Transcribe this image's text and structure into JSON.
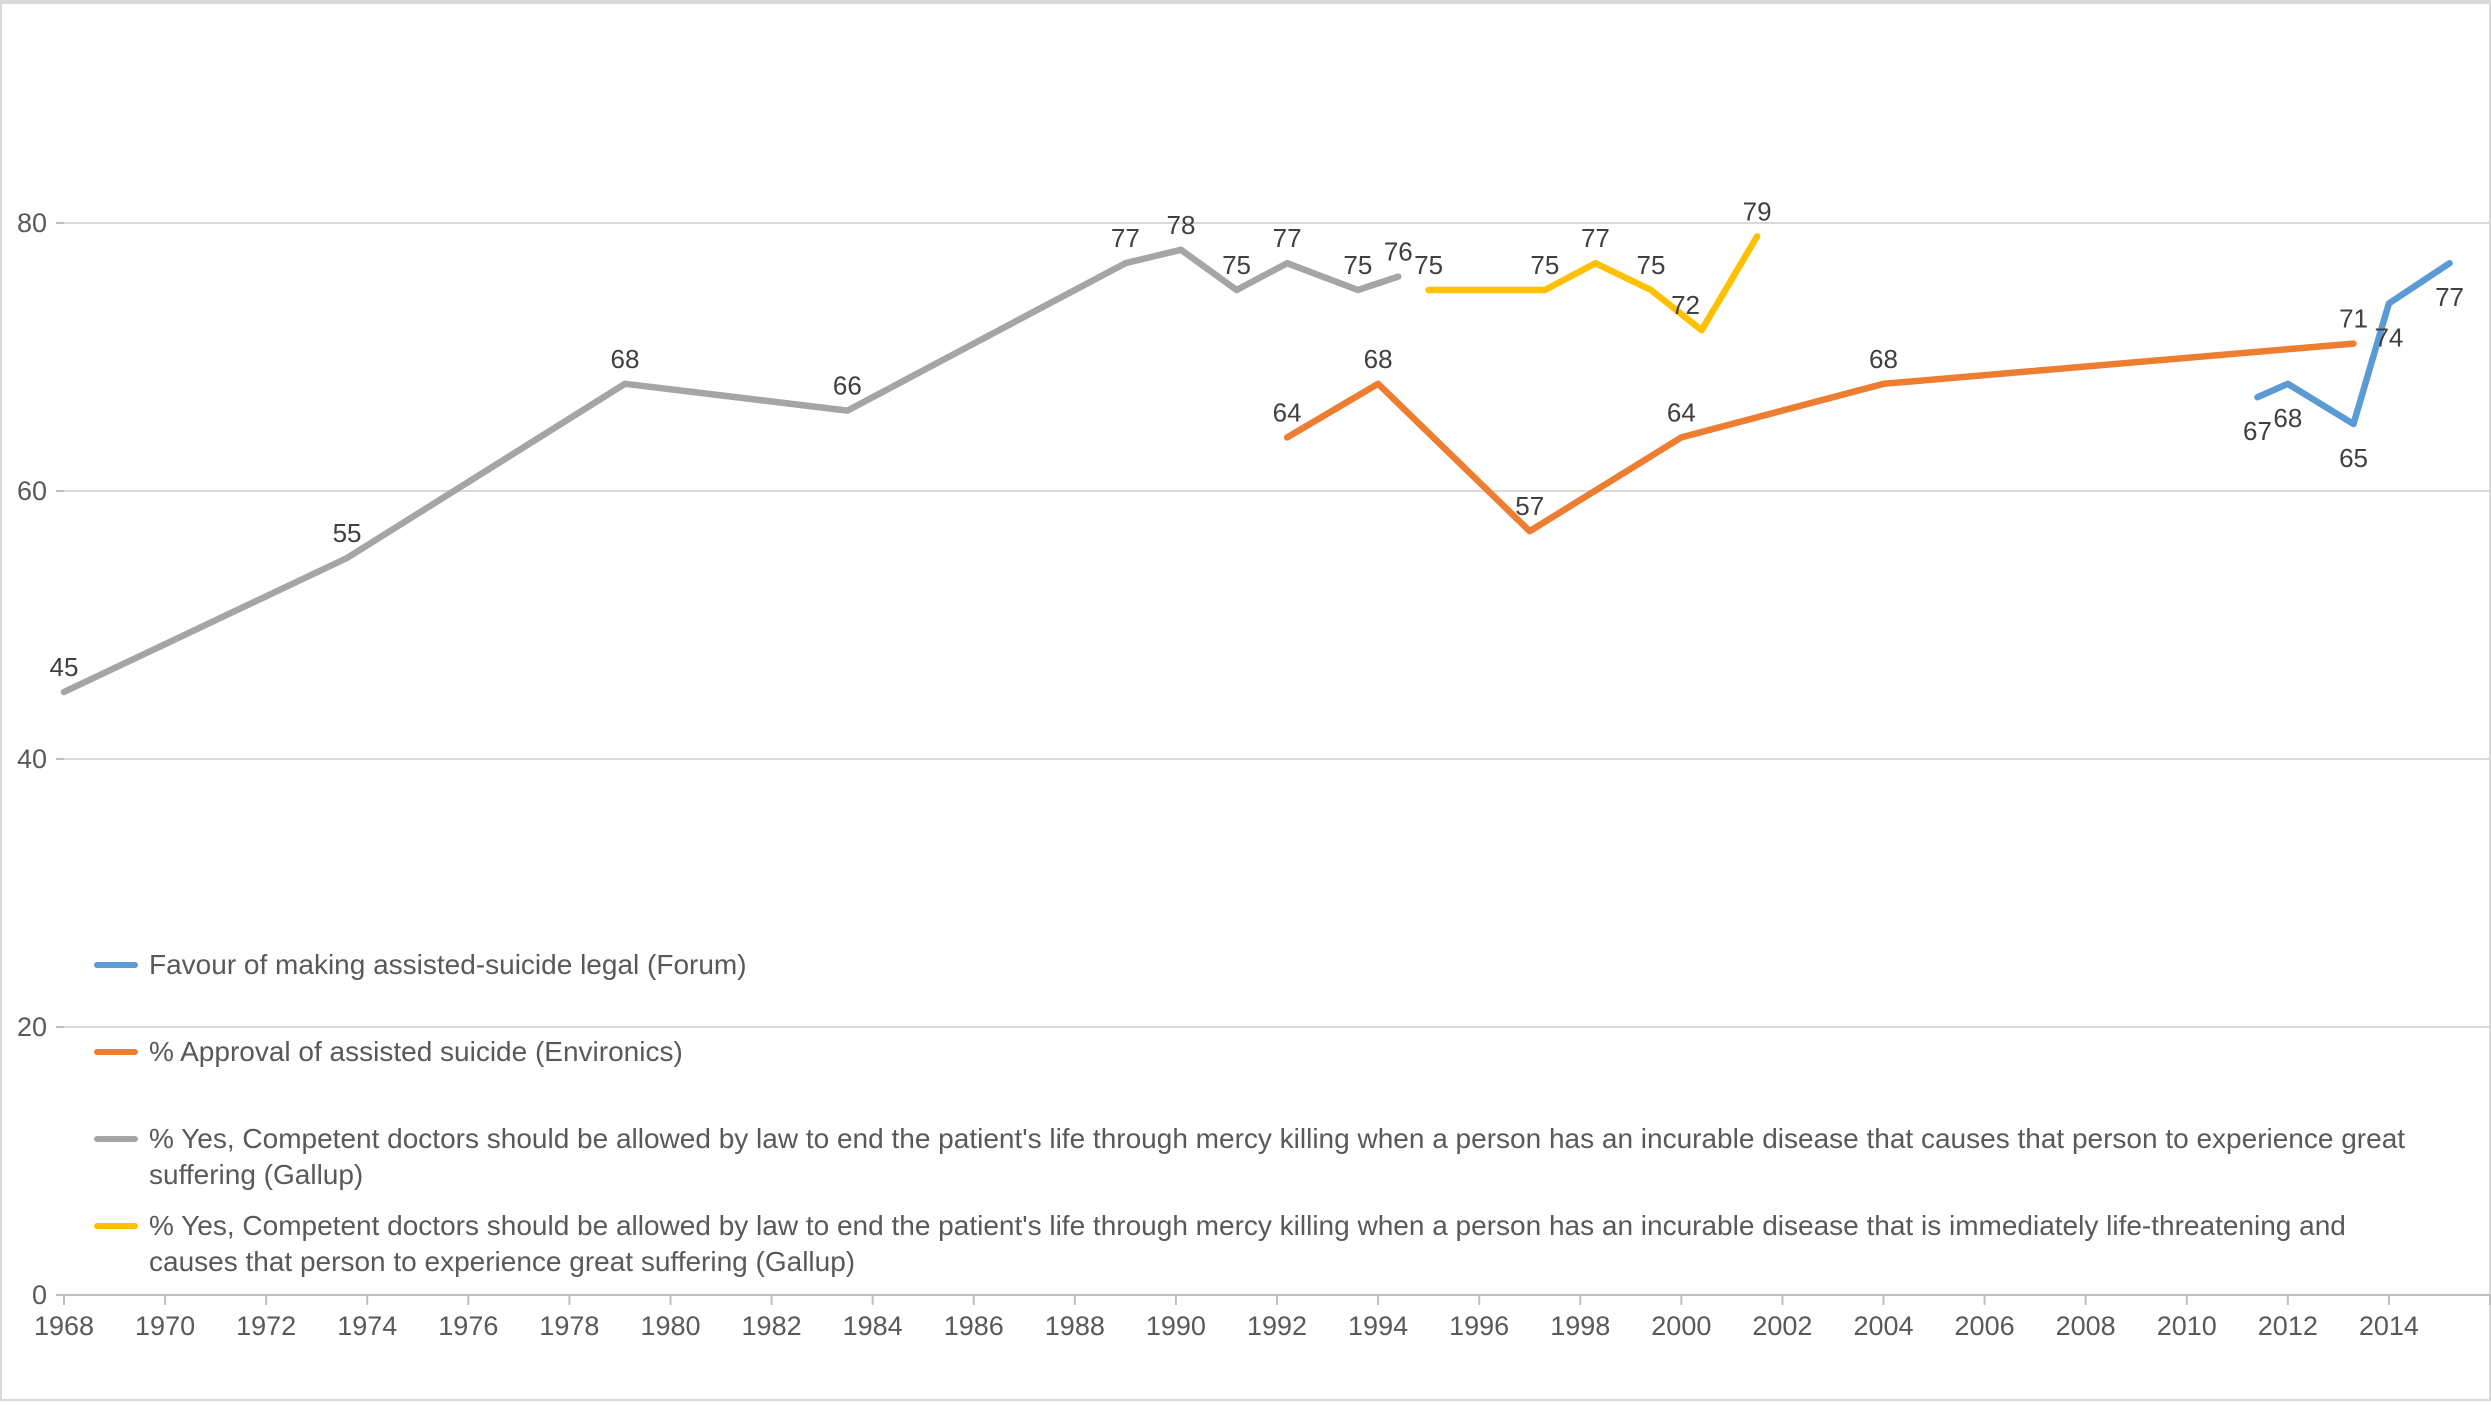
{
  "chart_data": {
    "type": "line",
    "title": "",
    "xlabel": "",
    "ylabel": "",
    "grid": true,
    "legend_position": "inside bottom-left",
    "x_axis": {
      "min": 1968,
      "max": 2016,
      "tick_step": 2,
      "tick_values": [
        1968,
        1970,
        1972,
        1974,
        1976,
        1978,
        1980,
        1982,
        1984,
        1986,
        1988,
        1990,
        1992,
        1994,
        1996,
        1998,
        2000,
        2002,
        2004,
        2006,
        2008,
        2010,
        2012,
        2014
      ],
      "tick_labels": [
        "1968",
        "1970",
        "1972",
        "1974",
        "1976",
        "1978",
        "1980",
        "1982",
        "1984",
        "1986",
        "1988",
        "1990",
        "1992",
        "1994",
        "1996",
        "1998",
        "2000",
        "2002",
        "2004",
        "2006",
        "2008",
        "2010",
        "2012",
        "2014"
      ]
    },
    "y_axis": {
      "min": 0,
      "max": 80,
      "tick_values": [
        0,
        20,
        40,
        60,
        80
      ],
      "tick_labels": [
        "0",
        "20",
        "40",
        "60",
        "80"
      ]
    },
    "style": {
      "background": "#FFFFFF",
      "frame_border": "#D9D9D9",
      "gridline_color": "#D9D9D9",
      "axis_line_color": "#BFBFBF",
      "axis_text_color": "#595959",
      "data_label_color": "#404040",
      "legend_text_color": "#595959"
    },
    "series": [
      {
        "id": "forum",
        "name": "Favour of making assisted-suicide legal (Forum)",
        "legend_lines": [
          "Favour of making assisted-suicide legal (Forum)"
        ],
        "color": "#5B9BD5",
        "label_placement": "below",
        "points": [
          {
            "x": 2011.4,
            "v": 67
          },
          {
            "x": 2012.0,
            "v": 68
          },
          {
            "x": 2013.3,
            "v": 65
          },
          {
            "x": 2014.0,
            "v": 74
          },
          {
            "x": 2015.2,
            "v": 77
          }
        ]
      },
      {
        "id": "environics",
        "name": "% Approval of assisted suicide (Environics)",
        "legend_lines": [
          "% Approval of assisted suicide (Environics)"
        ],
        "color": "#ED7D31",
        "label_placement": "above",
        "points": [
          {
            "x": 1992.2,
            "v": 64
          },
          {
            "x": 1994.0,
            "v": 68
          },
          {
            "x": 1997.0,
            "v": 57
          },
          {
            "x": 2000.0,
            "v": 64
          },
          {
            "x": 2004.0,
            "v": 68
          },
          {
            "x": 2013.3,
            "v": 71
          }
        ]
      },
      {
        "id": "gallup_great_suffering",
        "name": "% Yes, Competent doctors should be allowed by law to end the patient's life through mercy killing when a person has an incurable disease that causes that person to experience great suffering (Gallup)",
        "legend_lines": [
          "% Yes, Competent doctors should be allowed by law to end the patient's life through mercy killing when a person has an incurable disease that causes that person to experience great",
          "suffering (Gallup)"
        ],
        "color": "#A5A5A5",
        "label_placement": "above",
        "points": [
          {
            "x": 1968.0,
            "v": 45
          },
          {
            "x": 1973.6,
            "v": 55
          },
          {
            "x": 1979.1,
            "v": 68
          },
          {
            "x": 1983.5,
            "v": 66
          },
          {
            "x": 1989.0,
            "v": 77
          },
          {
            "x": 1990.1,
            "v": 78
          },
          {
            "x": 1991.2,
            "v": 75
          },
          {
            "x": 1992.2,
            "v": 77
          },
          {
            "x": 1993.6,
            "v": 75
          },
          {
            "x": 1994.4,
            "v": 76
          }
        ]
      },
      {
        "id": "gallup_life_threatening",
        "name": "% Yes, Competent doctors should be allowed by law to end the patient's life through mercy killing when a person has an incurable disease that is immediately life-threatening and causes that person to experience great suffering (Gallup)",
        "legend_lines": [
          "% Yes, Competent doctors should be allowed by law to end the patient's life through mercy killing when a person has an incurable disease that is immediately life-threatening and",
          "causes that person to experience great suffering (Gallup)"
        ],
        "color": "#FFC000",
        "label_placement": "above",
        "points": [
          {
            "x": 1995.0,
            "v": 75
          },
          {
            "x": 1997.3,
            "v": 75
          },
          {
            "x": 1998.3,
            "v": 77
          },
          {
            "x": 1999.4,
            "v": 75
          },
          {
            "x": 2000.4,
            "v": 72,
            "dx": -16
          },
          {
            "x": 2001.5,
            "v": 79
          }
        ]
      }
    ]
  }
}
